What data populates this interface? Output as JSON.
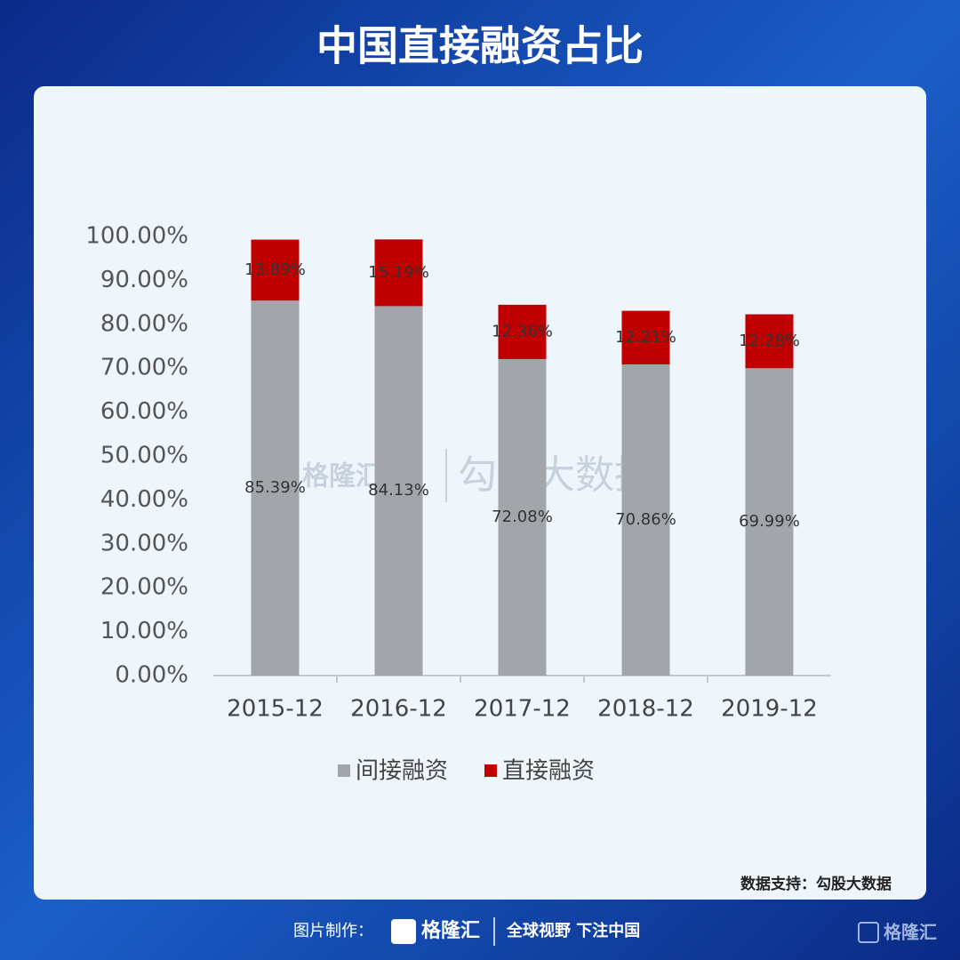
{
  "chart_data": {
    "type": "stacked_bar",
    "title": "中国直接融资占比",
    "categories": [
      "2015-12",
      "2016-12",
      "2017-12",
      "2018-12",
      "2019-12"
    ],
    "series": [
      {
        "name": "间接融资",
        "color": "#a2a5aa",
        "values": [
          85.39,
          84.13,
          72.08,
          70.86,
          69.99
        ],
        "value_labels": [
          "85.39%",
          "84.13%",
          "72.08%",
          "70.86%",
          "69.99%"
        ]
      },
      {
        "name": "直接融资",
        "color": "#c00000",
        "values": [
          13.89,
          15.19,
          12.36,
          12.21,
          12.28
        ],
        "value_labels": [
          "13.89%",
          "15.19%",
          "12.36%",
          "12.21%",
          "12.28%"
        ]
      }
    ],
    "ylim": [
      0,
      100
    ],
    "yticks": [
      {
        "value": 0,
        "label": "0.00%"
      },
      {
        "value": 10,
        "label": "10.00%"
      },
      {
        "value": 20,
        "label": "20.00%"
      },
      {
        "value": 30,
        "label": "30.00%"
      },
      {
        "value": 40,
        "label": "40.00%"
      },
      {
        "value": 50,
        "label": "50.00%"
      },
      {
        "value": 60,
        "label": "60.00%"
      },
      {
        "value": 70,
        "label": "70.00%"
      },
      {
        "value": 80,
        "label": "80.00%"
      },
      {
        "value": 90,
        "label": "90.00%"
      },
      {
        "value": 100,
        "label": "100.00%"
      }
    ],
    "grid": false,
    "source": "数据支持：勾股大数据"
  },
  "watermark": [
    "格隆汇",
    "勾股大数据"
  ],
  "footer": {
    "made_by": "图片制作：",
    "brand": "格隆汇",
    "slogan": "全球视野 下注中国",
    "corner_logo": "格隆汇"
  }
}
